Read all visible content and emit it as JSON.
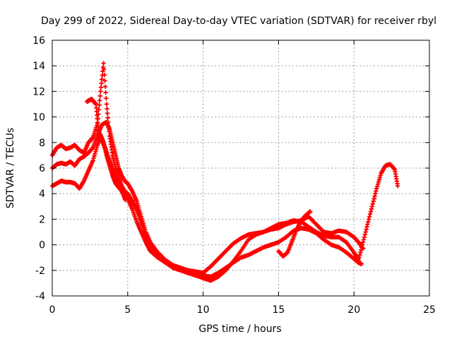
{
  "chart_data": {
    "type": "scatter",
    "title": "Day 299 of 2022, Sidereal Day-to-day VTEC variation (SDTVAR) for receiver rbyl",
    "xlabel": "GPS time / hours",
    "ylabel": "SDTVAR / TECUs",
    "xlim": [
      0,
      25
    ],
    "ylim": [
      -4,
      16
    ],
    "xticks": [
      0,
      5,
      10,
      15,
      20,
      25
    ],
    "yticks": [
      -4,
      -2,
      0,
      2,
      4,
      6,
      8,
      10,
      12,
      14,
      16
    ],
    "grid": true,
    "marker": "+",
    "series": [
      {
        "name": "track-a",
        "color": "#ff0000",
        "x": [
          0.0,
          0.3,
          0.6,
          0.9,
          1.2,
          1.5,
          1.8,
          2.1,
          2.4,
          2.7,
          3.0,
          3.2,
          3.4,
          3.6,
          3.8,
          4.0,
          4.2,
          4.4,
          4.6,
          4.8,
          5.0,
          5.2,
          5.4,
          5.6,
          5.8,
          6.0,
          6.2,
          6.5,
          7.0,
          7.5,
          8.0,
          8.5,
          9.0,
          9.5,
          10.0,
          10.5,
          11.0,
          11.5,
          12.0,
          12.5,
          13.0,
          13.5,
          14.0,
          14.5,
          15.0,
          15.5,
          16.0,
          16.5,
          17.0,
          17.5,
          18.0,
          18.5,
          19.0,
          19.5,
          20.0,
          20.3,
          20.6
        ],
        "y": [
          7.0,
          7.6,
          7.8,
          7.5,
          7.6,
          7.8,
          7.4,
          7.2,
          8.0,
          8.4,
          9.5,
          12.0,
          14.2,
          11.0,
          8.5,
          7.0,
          6.0,
          5.2,
          4.6,
          4.2,
          4.0,
          3.6,
          3.2,
          2.8,
          2.2,
          1.5,
          0.6,
          -0.2,
          -0.8,
          -1.2,
          -1.6,
          -1.9,
          -2.2,
          -2.4,
          -2.6,
          -2.8,
          -2.5,
          -2.0,
          -1.3,
          -0.5,
          0.4,
          0.8,
          1.0,
          1.2,
          1.3,
          1.6,
          1.8,
          1.9,
          2.2,
          1.6,
          1.0,
          0.9,
          1.1,
          1.0,
          0.6,
          0.2,
          -0.3
        ]
      },
      {
        "name": "track-b",
        "color": "#ff0000",
        "x": [
          0.0,
          0.3,
          0.6,
          0.9,
          1.2,
          1.5,
          1.8,
          2.1,
          2.4,
          2.7,
          3.0,
          3.3,
          3.6,
          3.8,
          4.0,
          4.2,
          4.4,
          4.6,
          4.8,
          5.0,
          5.3,
          5.6,
          5.9,
          6.2,
          6.5,
          7.0,
          7.5,
          8.0,
          8.5,
          9.0,
          9.5,
          10.0,
          10.5,
          11.0,
          11.5,
          12.0,
          12.5,
          13.0,
          13.5,
          14.0,
          14.5,
          15.0,
          15.5,
          16.0,
          16.5,
          17.0,
          17.5,
          18.0,
          18.5,
          19.0,
          19.5,
          20.0,
          20.3,
          20.6,
          20.9,
          21.2,
          21.5,
          21.8,
          22.1,
          22.4,
          22.7,
          22.9
        ],
        "y": [
          6.0,
          6.3,
          6.4,
          6.3,
          6.5,
          6.2,
          6.7,
          6.9,
          7.2,
          7.6,
          8.6,
          9.4,
          9.6,
          9.0,
          8.0,
          7.0,
          6.0,
          5.4,
          5.0,
          4.8,
          4.2,
          3.4,
          2.2,
          1.0,
          0.2,
          -0.6,
          -1.2,
          -1.6,
          -1.8,
          -2.0,
          -2.1,
          -2.2,
          -1.7,
          -1.1,
          -0.5,
          0.1,
          0.5,
          0.8,
          0.9,
          1.0,
          1.3,
          1.6,
          1.7,
          1.9,
          1.8,
          1.4,
          1.0,
          0.7,
          0.6,
          0.6,
          0.2,
          -0.6,
          -1.2,
          0.2,
          1.6,
          3.0,
          4.4,
          5.6,
          6.2,
          6.3,
          5.9,
          4.6
        ]
      },
      {
        "name": "track-c",
        "color": "#ff0000",
        "x": [
          0.0,
          0.3,
          0.6,
          0.9,
          1.2,
          1.5,
          1.8,
          2.1,
          2.4,
          2.7,
          3.0,
          3.2,
          3.4,
          3.6,
          3.8,
          4.0,
          4.2,
          4.4,
          4.6,
          5.0,
          5.3,
          5.6,
          5.9,
          6.2,
          6.5,
          7.0,
          7.5,
          8.0,
          8.5,
          9.0,
          9.5,
          10.0,
          10.5,
          11.0,
          11.5,
          12.0,
          12.5,
          13.0,
          13.5,
          14.0,
          14.5,
          15.0,
          15.5,
          16.0,
          16.5,
          17.0,
          17.5,
          18.0,
          18.5,
          19.0,
          19.5,
          20.0,
          20.3,
          20.5
        ],
        "y": [
          4.6,
          4.8,
          5.0,
          4.9,
          4.9,
          4.8,
          4.4,
          5.0,
          5.8,
          6.6,
          7.8,
          8.6,
          8.0,
          7.0,
          6.2,
          5.4,
          4.8,
          4.5,
          4.3,
          3.6,
          2.8,
          1.8,
          1.0,
          0.2,
          -0.5,
          -1.0,
          -1.4,
          -1.8,
          -2.0,
          -2.2,
          -2.3,
          -2.4,
          -2.5,
          -2.2,
          -1.8,
          -1.4,
          -1.0,
          -0.8,
          -0.5,
          -0.2,
          0.0,
          0.2,
          0.6,
          1.1,
          1.3,
          1.2,
          0.9,
          0.4,
          0.0,
          -0.2,
          -0.6,
          -1.1,
          -1.4,
          -1.5
        ]
      },
      {
        "name": "track-d",
        "color": "#ff0000",
        "x": [
          2.3,
          2.45,
          2.6,
          2.75,
          2.9,
          3.05,
          3.2,
          3.35,
          3.5,
          3.65,
          3.8,
          3.95,
          4.1,
          4.25,
          4.4,
          4.55,
          4.7,
          4.85,
          15.0,
          15.3,
          15.6,
          15.9,
          16.2,
          16.5,
          16.8,
          17.1
        ],
        "y": [
          11.2,
          11.3,
          11.4,
          11.2,
          11.0,
          9.0,
          8.5,
          8.0,
          7.6,
          7.0,
          6.5,
          6.0,
          5.4,
          4.9,
          4.5,
          4.3,
          4.0,
          3.5,
          -0.5,
          -0.9,
          -0.6,
          0.3,
          1.2,
          1.9,
          2.3,
          2.6
        ]
      }
    ]
  }
}
